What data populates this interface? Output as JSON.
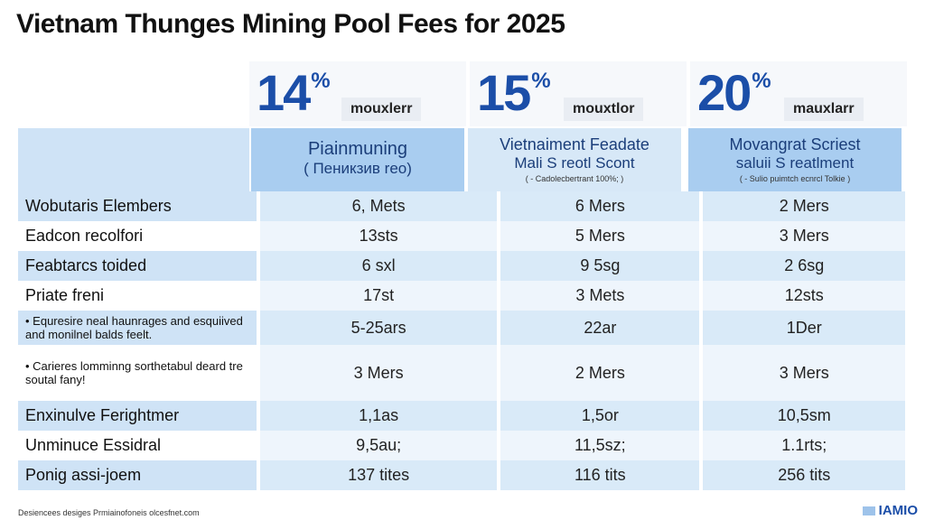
{
  "chart_data": {
    "type": "table",
    "title": "Vietnam Thunges Mining Pool Fees for 2025",
    "header_percents": [
      "14",
      "15",
      "20"
    ],
    "percent_sign": "%",
    "header_labels": [
      "mouxlerr",
      "mouxtlor",
      "mauxlarr"
    ],
    "columns": [
      {
        "title": "Piainmuning",
        "subtitle": "( Пеникзив reo)",
        "note": ""
      },
      {
        "title": "Vietnaiment Feadate",
        "subtitle": "Mali S reotl Scont",
        "note": "( - Cadolecbertrant 100%; )"
      },
      {
        "title": "Movangrat Scriest",
        "subtitle": "saluii S reatlment",
        "note": "( - Sulio puimtch ecnrcl Tolkie )"
      }
    ],
    "rows": [
      {
        "label": "Wobutaris Elembers",
        "values": [
          "6, Mets",
          "6 Mers",
          "2 Mers"
        ]
      },
      {
        "label": "Eadcon recolfori",
        "values": [
          "13sts",
          "5 Mers",
          "3 Mers"
        ]
      },
      {
        "label": "Feabtarcs toided",
        "values": [
          "6 sxl",
          "9 5sg",
          "2 6sg"
        ]
      },
      {
        "label": "Priate freni",
        "values": [
          "17st",
          "3 Mets",
          "12sts"
        ]
      },
      {
        "label": "• Equresire neal haunrages and esquiived and monilnel balds feelt.",
        "values": [
          "5-25ars",
          "22ar",
          "1Der"
        ]
      },
      {
        "label": "• Carieres lomminng sorthetabul deard tre soutal fany!",
        "values": [
          "3 Mers",
          "2 Mers",
          "3 Mers"
        ]
      },
      {
        "label": "Enxinulve Ferightmer",
        "values": [
          "1,1as",
          "1,5or",
          "10,5sm"
        ]
      },
      {
        "label": "Unminuce Essidral",
        "values": [
          "9,5au;",
          "11,5sz;",
          "1.1rts;"
        ]
      },
      {
        "label": "Ponig assi-joem",
        "values": [
          "137 tites",
          "116 tits",
          "256 tits"
        ]
      }
    ]
  },
  "footer": "Desiencees desiges Prmiainofoneis olcesfnet.com",
  "brand": "IAMIO",
  "colors": {
    "accent": "#1b4ea8",
    "header_blue": "#a9cdf0",
    "row_band": "#d9eaf8",
    "row_band_light": "#eef5fc"
  }
}
